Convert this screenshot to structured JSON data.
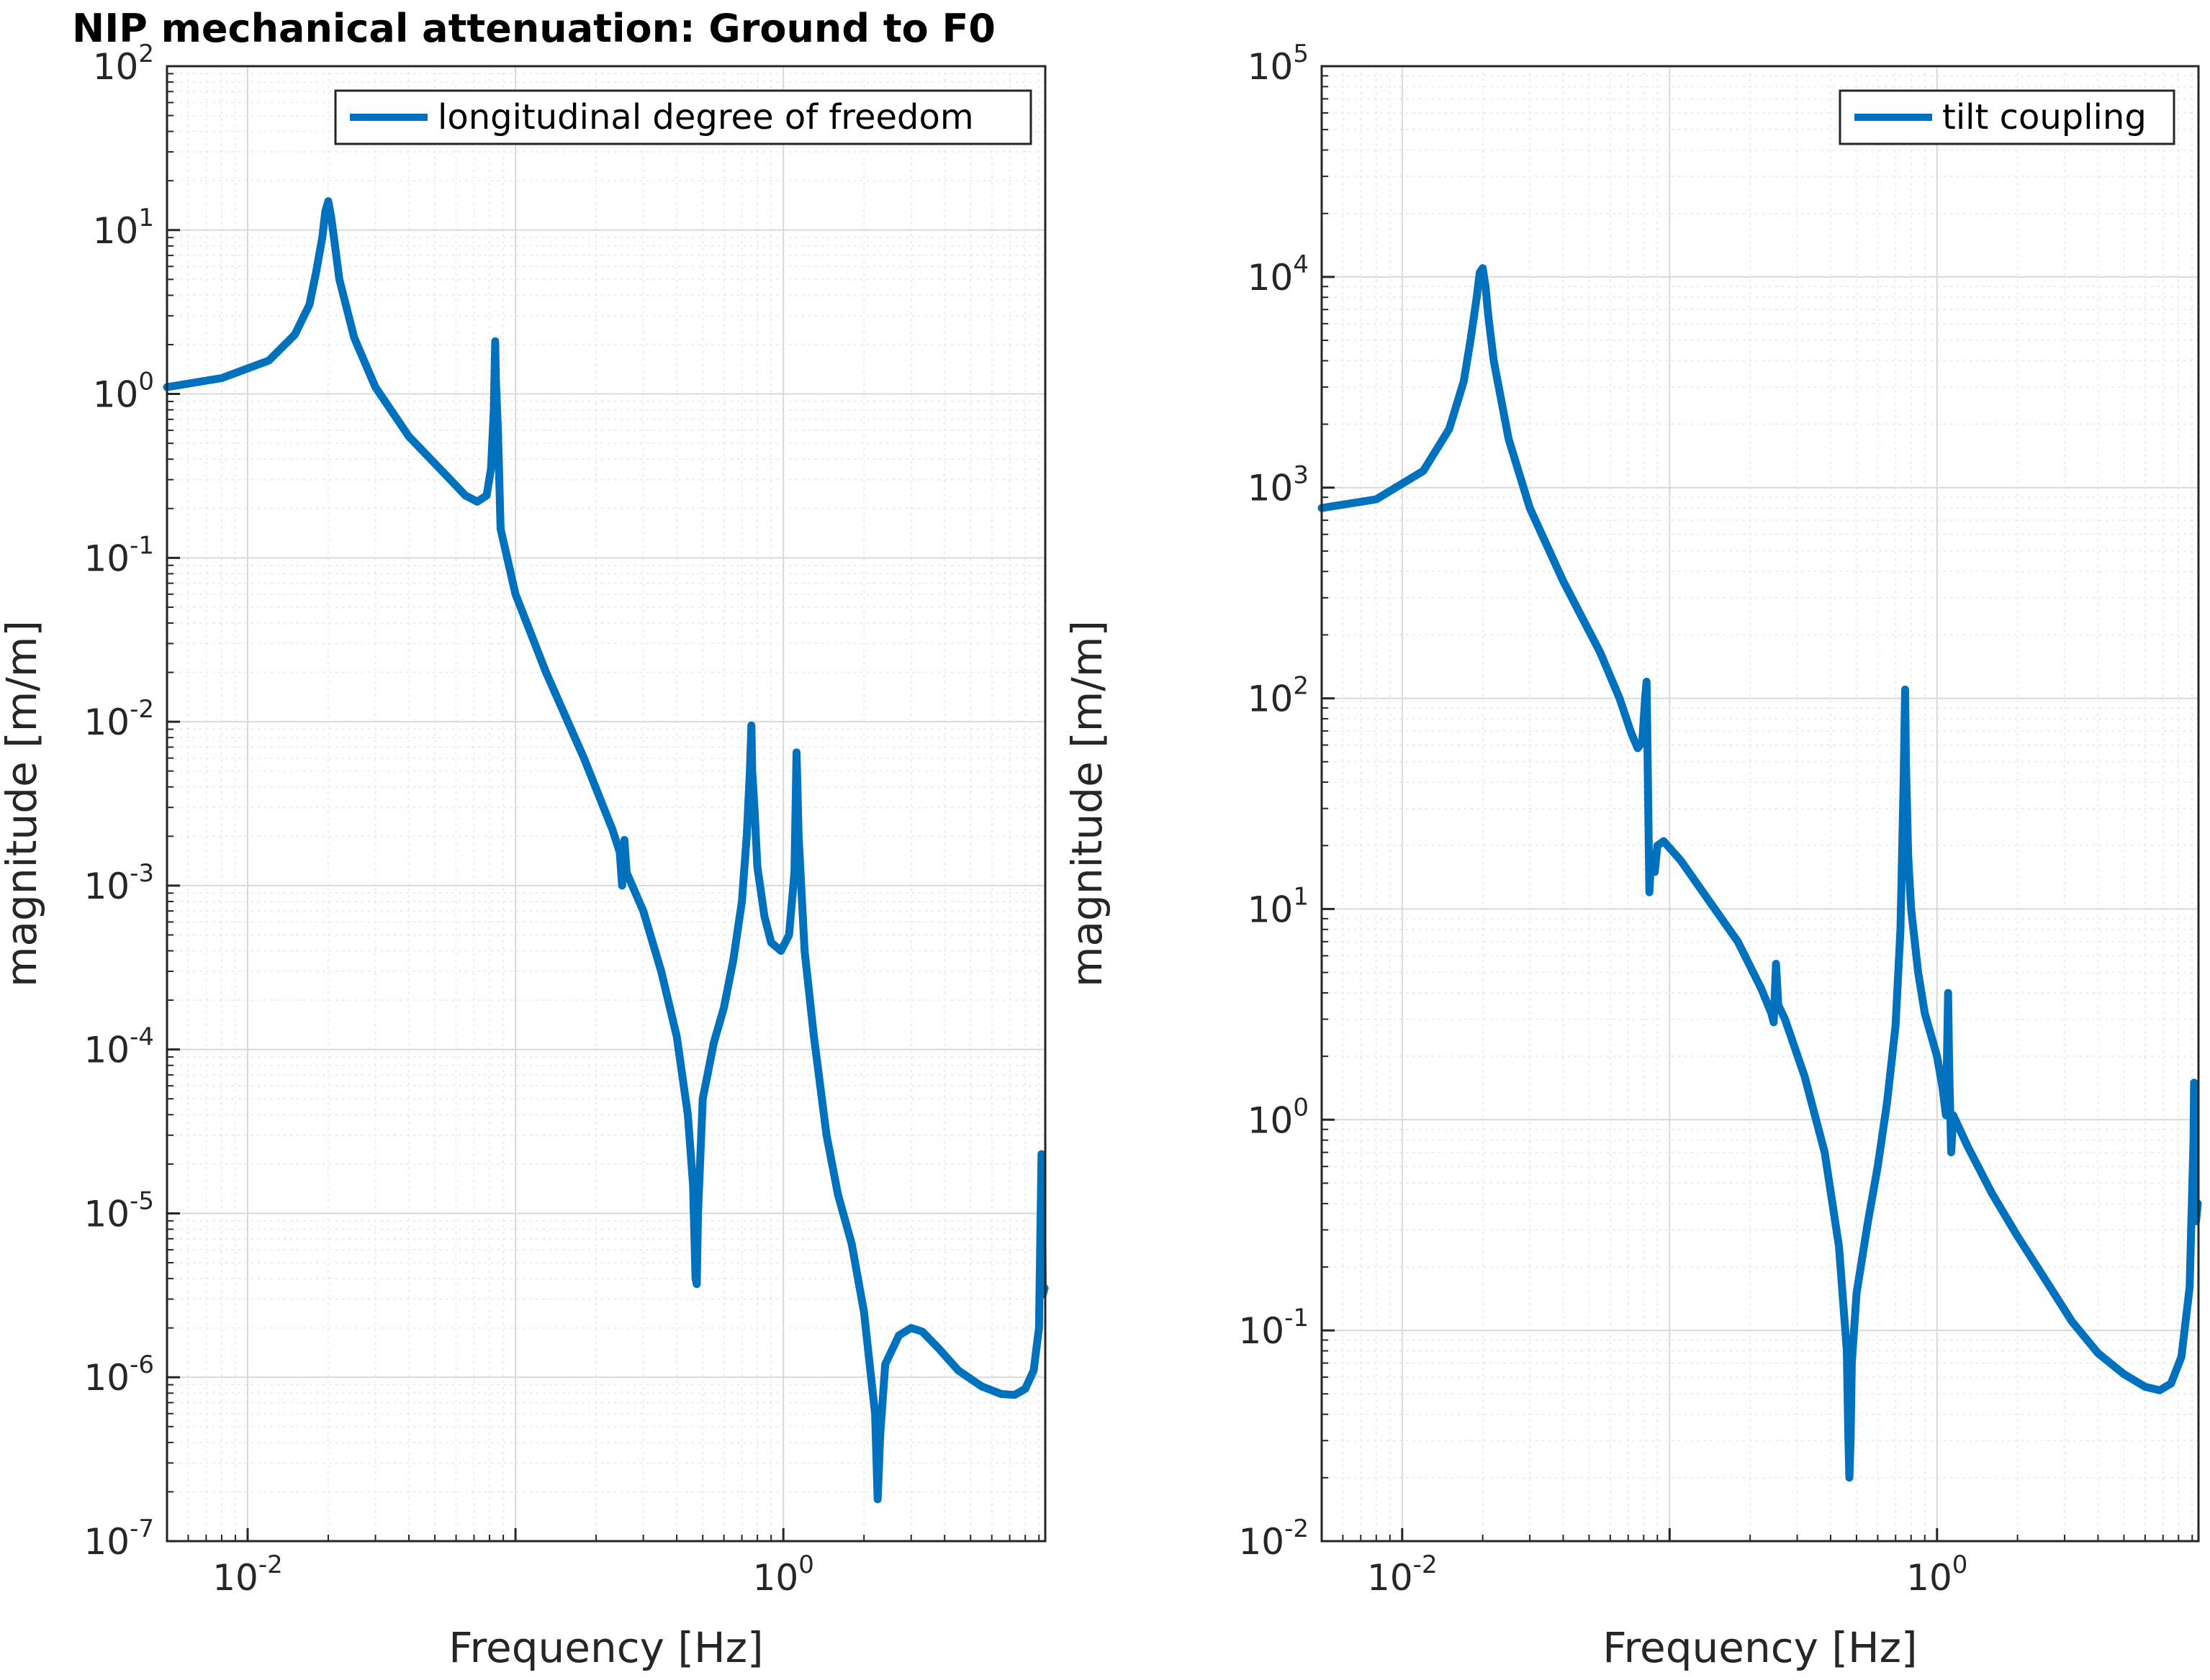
{
  "title": "NIP mechanical attenuation: Ground to F0",
  "colors": {
    "series": "#0072BD",
    "grid_major": "#d9d9d9",
    "grid_minor": "#e6e6e6",
    "axis": "#262626"
  },
  "chart_data": [
    {
      "type": "line",
      "x_scale": "log",
      "y_scale": "log",
      "xlabel": "Frequency [Hz]",
      "ylabel": "magnitude [m/m]",
      "xlim": [
        0.005,
        9.5
      ],
      "ylim": [
        1e-07,
        100
      ],
      "x_ticks": [
        {
          "base": "10",
          "exp": "-2"
        },
        {
          "base": "10",
          "exp": "0"
        }
      ],
      "y_ticks": [
        {
          "base": "10",
          "exp": "-7"
        },
        {
          "base": "10",
          "exp": "-6"
        },
        {
          "base": "10",
          "exp": "-5"
        },
        {
          "base": "10",
          "exp": "-4"
        },
        {
          "base": "10",
          "exp": "-3"
        },
        {
          "base": "10",
          "exp": "-2"
        },
        {
          "base": "10",
          "exp": "-1"
        },
        {
          "base": "10",
          "exp": "0"
        },
        {
          "base": "10",
          "exp": "1"
        },
        {
          "base": "10",
          "exp": "2"
        }
      ],
      "grid": true,
      "legend_position": "top-right",
      "series": [
        {
          "name": "longitudinal degree of freedom",
          "points": [
            [
              0.005,
              1.1
            ],
            [
              0.008,
              1.25
            ],
            [
              0.012,
              1.6
            ],
            [
              0.015,
              2.3
            ],
            [
              0.017,
              3.5
            ],
            [
              0.018,
              5.5
            ],
            [
              0.019,
              9
            ],
            [
              0.0195,
              13
            ],
            [
              0.02,
              15
            ],
            [
              0.0205,
              12
            ],
            [
              0.021,
              9
            ],
            [
              0.022,
              5
            ],
            [
              0.025,
              2.2
            ],
            [
              0.03,
              1.1
            ],
            [
              0.04,
              0.55
            ],
            [
              0.055,
              0.32
            ],
            [
              0.065,
              0.24
            ],
            [
              0.072,
              0.22
            ],
            [
              0.078,
              0.24
            ],
            [
              0.081,
              0.35
            ],
            [
              0.083,
              0.8
            ],
            [
              0.084,
              2.1
            ],
            [
              0.0845,
              1.2
            ],
            [
              0.086,
              0.6
            ],
            [
              0.088,
              0.15
            ],
            [
              0.1,
              0.06
            ],
            [
              0.13,
              0.02
            ],
            [
              0.18,
              0.006
            ],
            [
              0.23,
              0.0022
            ],
            [
              0.245,
              0.0016
            ],
            [
              0.25,
              0.001
            ],
            [
              0.255,
              0.0019
            ],
            [
              0.26,
              0.0012
            ],
            [
              0.3,
              0.0007
            ],
            [
              0.35,
              0.0003
            ],
            [
              0.4,
              0.00012
            ],
            [
              0.44,
              4e-05
            ],
            [
              0.46,
              1.5e-05
            ],
            [
              0.47,
              4e-06
            ],
            [
              0.475,
              3.7e-06
            ],
            [
              0.48,
              1e-05
            ],
            [
              0.5,
              5e-05
            ],
            [
              0.55,
              0.00011
            ],
            [
              0.6,
              0.00018
            ],
            [
              0.65,
              0.00035
            ],
            [
              0.7,
              0.0008
            ],
            [
              0.73,
              0.002
            ],
            [
              0.75,
              0.005
            ],
            [
              0.76,
              0.0095
            ],
            [
              0.765,
              0.005
            ],
            [
              0.78,
              0.003
            ],
            [
              0.8,
              0.0013
            ],
            [
              0.85,
              0.00065
            ],
            [
              0.9,
              0.00045
            ],
            [
              0.98,
              0.0004
            ],
            [
              1.05,
              0.0005
            ],
            [
              1.1,
              0.0012
            ],
            [
              1.12,
              0.0065
            ],
            [
              1.14,
              0.002
            ],
            [
              1.2,
              0.0004
            ],
            [
              1.3,
              0.00012
            ],
            [
              1.45,
              3e-05
            ],
            [
              1.6,
              1.3e-05
            ],
            [
              1.8,
              6.5e-06
            ],
            [
              2.0,
              2.5e-06
            ],
            [
              2.1,
              1.2e-06
            ],
            [
              2.2,
              6e-07
            ],
            [
              2.25,
              1.8e-07
            ],
            [
              2.3,
              4.5e-07
            ],
            [
              2.4,
              1.2e-06
            ],
            [
              2.7,
              1.8e-06
            ],
            [
              3.0,
              2e-06
            ],
            [
              3.3,
              1.9e-06
            ],
            [
              3.8,
              1.5e-06
            ],
            [
              4.5,
              1.1e-06
            ],
            [
              5.5,
              8.8e-07
            ],
            [
              6.5,
              7.9e-07
            ],
            [
              7.3,
              7.8e-07
            ],
            [
              8.0,
              8.5e-07
            ],
            [
              8.6,
              1.1e-06
            ],
            [
              9.0,
              2e-06
            ],
            [
              9.15,
              1.2e-05
            ],
            [
              9.2,
              2.3e-05
            ],
            [
              9.25,
              9e-06
            ],
            [
              9.3,
              3.2e-06
            ],
            [
              9.45,
              3.5e-06
            ]
          ]
        }
      ]
    },
    {
      "type": "line",
      "x_scale": "log",
      "y_scale": "log",
      "xlabel": "Frequency [Hz]",
      "ylabel": "magnitude [m/m]",
      "xlim": [
        0.005,
        9.5
      ],
      "ylim": [
        0.01,
        100000
      ],
      "x_ticks": [
        {
          "base": "10",
          "exp": "-2"
        },
        {
          "base": "10",
          "exp": "0"
        }
      ],
      "y_ticks": [
        {
          "base": "10",
          "exp": "-2"
        },
        {
          "base": "10",
          "exp": "-1"
        },
        {
          "base": "10",
          "exp": "0"
        },
        {
          "base": "10",
          "exp": "1"
        },
        {
          "base": "10",
          "exp": "2"
        },
        {
          "base": "10",
          "exp": "3"
        },
        {
          "base": "10",
          "exp": "4"
        },
        {
          "base": "10",
          "exp": "5"
        }
      ],
      "grid": true,
      "legend_position": "top-right",
      "series": [
        {
          "name": "tilt coupling",
          "points": [
            [
              0.005,
              800
            ],
            [
              0.008,
              880
            ],
            [
              0.012,
              1200
            ],
            [
              0.015,
              1900
            ],
            [
              0.017,
              3200
            ],
            [
              0.018,
              5000
            ],
            [
              0.019,
              8000
            ],
            [
              0.0195,
              10500
            ],
            [
              0.02,
              11000
            ],
            [
              0.0205,
              9000
            ],
            [
              0.021,
              6500
            ],
            [
              0.022,
              4000
            ],
            [
              0.025,
              1700
            ],
            [
              0.03,
              800
            ],
            [
              0.04,
              360
            ],
            [
              0.055,
              165
            ],
            [
              0.065,
              100
            ],
            [
              0.072,
              68
            ],
            [
              0.076,
              58
            ],
            [
              0.079,
              62
            ],
            [
              0.081,
              100
            ],
            [
              0.082,
              120
            ],
            [
              0.083,
              40
            ],
            [
              0.084,
              12
            ],
            [
              0.085,
              16
            ],
            [
              0.088,
              15
            ],
            [
              0.09,
              20
            ],
            [
              0.095,
              21
            ],
            [
              0.11,
              17
            ],
            [
              0.14,
              11
            ],
            [
              0.18,
              7
            ],
            [
              0.22,
              4.2
            ],
            [
              0.24,
              3.2
            ],
            [
              0.245,
              2.9
            ],
            [
              0.25,
              5.5
            ],
            [
              0.255,
              3.5
            ],
            [
              0.27,
              3
            ],
            [
              0.32,
              1.6
            ],
            [
              0.38,
              0.7
            ],
            [
              0.43,
              0.25
            ],
            [
              0.46,
              0.08
            ],
            [
              0.465,
              0.035
            ],
            [
              0.47,
              0.02
            ],
            [
              0.475,
              0.03
            ],
            [
              0.48,
              0.07
            ],
            [
              0.5,
              0.15
            ],
            [
              0.55,
              0.32
            ],
            [
              0.6,
              0.6
            ],
            [
              0.65,
              1.2
            ],
            [
              0.7,
              2.8
            ],
            [
              0.73,
              8
            ],
            [
              0.75,
              40
            ],
            [
              0.76,
              110
            ],
            [
              0.765,
              50
            ],
            [
              0.78,
              18
            ],
            [
              0.8,
              10
            ],
            [
              0.85,
              5
            ],
            [
              0.9,
              3.2
            ],
            [
              1.0,
              2
            ],
            [
              1.05,
              1.4
            ],
            [
              1.08,
              1.05
            ],
            [
              1.1,
              4
            ],
            [
              1.11,
              1.8
            ],
            [
              1.13,
              0.7
            ],
            [
              1.15,
              1.05
            ],
            [
              1.3,
              0.75
            ],
            [
              1.6,
              0.45
            ],
            [
              2.0,
              0.28
            ],
            [
              2.5,
              0.18
            ],
            [
              3.2,
              0.11
            ],
            [
              4.0,
              0.078
            ],
            [
              5.0,
              0.062
            ],
            [
              6.0,
              0.054
            ],
            [
              6.8,
              0.052
            ],
            [
              7.5,
              0.056
            ],
            [
              8.2,
              0.075
            ],
            [
              8.8,
              0.16
            ],
            [
              9.1,
              0.8
            ],
            [
              9.15,
              1.5
            ],
            [
              9.2,
              0.6
            ],
            [
              9.3,
              0.33
            ],
            [
              9.45,
              0.4
            ]
          ]
        }
      ]
    }
  ]
}
